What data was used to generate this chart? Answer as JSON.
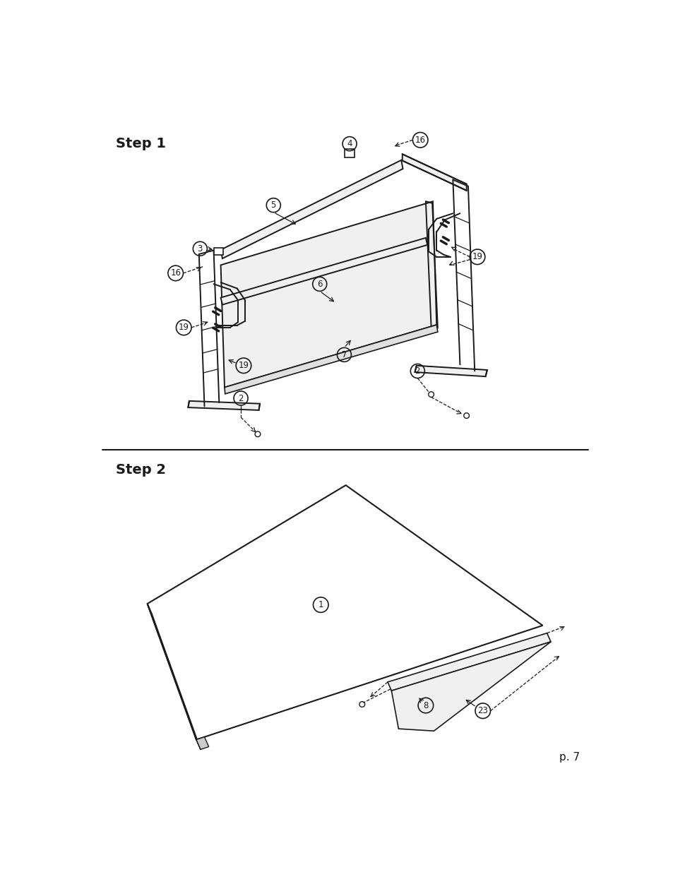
{
  "background_color": "#ffffff",
  "step1_label": "Step 1",
  "step2_label": "Step 2",
  "page_label": "p. 7",
  "label_fontsize": 14,
  "page_fontsize": 11,
  "line_color": "#1a1a1a",
  "fill_light": "#f0f0f0",
  "fill_mid": "#e0e0e0",
  "fill_dark": "#cccccc"
}
